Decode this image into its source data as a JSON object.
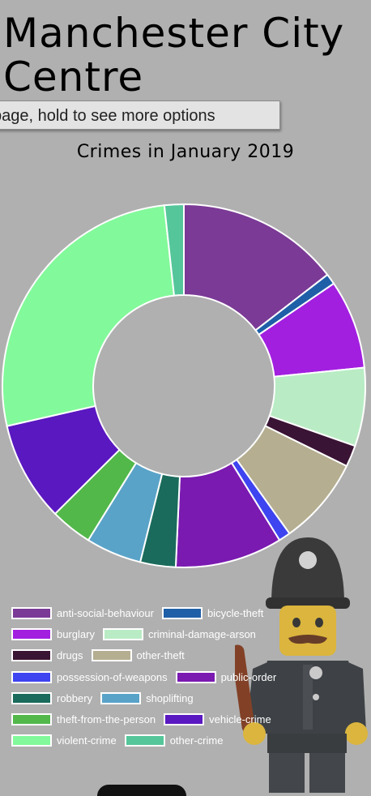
{
  "header": {
    "title": "Manchester City Centre",
    "tooltip": "page, hold to see more options"
  },
  "chart_data": {
    "type": "pie",
    "title": "Crimes in January 2019",
    "donut": true,
    "legend_position": "bottom",
    "categories": [
      "anti-social-behaviour",
      "bicycle-theft",
      "burglary",
      "criminal-damage-arson",
      "drugs",
      "other-theft",
      "possession-of-weapons",
      "public-order",
      "robbery",
      "shoplifting",
      "theft-from-the-person",
      "vehicle-crime",
      "violent-crime",
      "other-crime"
    ],
    "values": [
      15.2,
      1.0,
      8.3,
      7.3,
      2.0,
      8.2,
      1.1,
      10.0,
      3.3,
      5.2,
      3.9,
      9.3,
      28.1,
      1.8
    ],
    "colors": [
      "#7b3a96",
      "#1f5fa8",
      "#a21fe0",
      "#b9ecc4",
      "#3a1434",
      "#b5ae90",
      "#3e44f0",
      "#7a1ab0",
      "#1a6b5c",
      "#5aa3c8",
      "#52b84a",
      "#5a18c0",
      "#82f99a",
      "#55c69a"
    ]
  }
}
